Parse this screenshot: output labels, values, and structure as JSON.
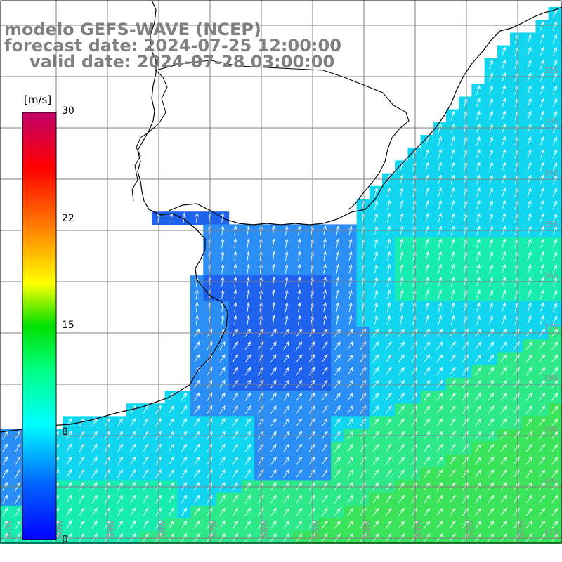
{
  "map": {
    "title_line1": "modelo GEFS-WAVE (NCEP)",
    "title_line2": "forecast date: 2024-07-25 12:00:00",
    "title_line3": "valid date: 2024-07-28 03:00:00",
    "colorbar": {
      "unit": "[m/s]",
      "ticks": [
        "30",
        "22",
        "15",
        "8",
        "0"
      ],
      "tick_values": [
        30,
        22,
        15,
        8,
        0
      ],
      "range": [
        0,
        30
      ],
      "colors": [
        "#0000ff",
        "#0080ff",
        "#00ffff",
        "#00ff00",
        "#ffff00",
        "#ff8000",
        "#ff0000",
        "#c0006a"
      ]
    },
    "lat_labels": [
      "32S",
      "33S",
      "34S",
      "35S",
      "36S",
      "37S",
      "38S",
      "39S",
      "40S",
      "41S"
    ],
    "lon_labels": [
      "61W",
      "60W",
      "59W",
      "58W",
      "57W",
      "56W",
      "55W",
      "54W",
      "53W",
      "52W",
      "51W"
    ],
    "field_colors": {
      "deep_blue": "#1f62ee",
      "blue": "#2b8ef4",
      "cyan": "#12d6f0",
      "green_cyan": "#19ecb0",
      "green": "#3be35a",
      "land": "#ffffff",
      "coast": "#000000",
      "grid": "#808080",
      "arrow": "#ffffff"
    },
    "wind_direction": "from southwest"
  }
}
